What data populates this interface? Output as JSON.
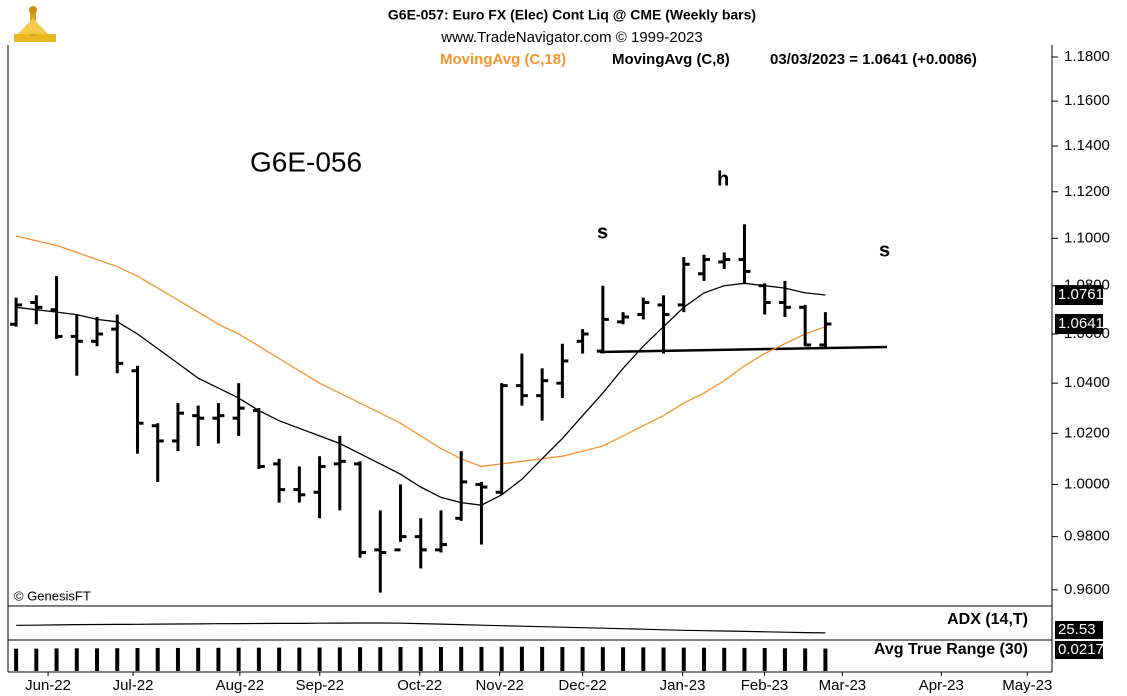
{
  "chart_data": {
    "type": "ohlc",
    "title": "G6E-057:  Euro FX (Elec) Cont Liq @ CME  (Weekly bars)",
    "subtitle": "www.TradeNavigator.com © 1999-2023",
    "last_bar_label": "03/03/2023 = 1.0641 (+0.0086)",
    "copyright": "© GenesisFT",
    "annotations": [
      "G6E-056",
      "s",
      "h",
      "s"
    ],
    "log_scale": true,
    "bar_color": "#000000",
    "categories": [
      null,
      null,
      null,
      null,
      null,
      null,
      null,
      null,
      null,
      null,
      null,
      null,
      null,
      null,
      null,
      null,
      null,
      null,
      null,
      null,
      null,
      null,
      null,
      null,
      null,
      null,
      null,
      null,
      null,
      null,
      null,
      null,
      null,
      null,
      null,
      null,
      null,
      null,
      null,
      null,
      null
    ],
    "ohlc": {
      "open": [
        1.064,
        1.073,
        1.07,
        1.059,
        1.057,
        1.062,
        1.045,
        1.023,
        1.017,
        1.027,
        1.026,
        1.026,
        1.029,
        1.008,
        0.998,
        0.997,
        1.008,
        1.008,
        0.975,
        0.975,
        0.98,
        0.975,
        0.987,
        1.0,
        0.997,
        1.039,
        1.035,
        1.04,
        1.057,
        1.053,
        1.065,
        1.068,
        1.072,
        1.072,
        1.085,
        1.09,
        1.091,
        1.08,
        1.073,
        1.071,
        1.0555
      ],
      "high": [
        1.075,
        1.076,
        1.084,
        1.068,
        1.067,
        1.068,
        1.047,
        1.024,
        1.032,
        1.031,
        1.032,
        1.04,
        1.03,
        1.01,
        1.007,
        1.011,
        1.019,
        1.009,
        0.99,
        1.0,
        0.987,
        0.99,
        1.013,
        1.001,
        1.04,
        1.052,
        1.046,
        1.056,
        1.062,
        1.08,
        1.069,
        1.075,
        1.076,
        1.092,
        1.093,
        1.094,
        1.106,
        1.081,
        1.082,
        1.072,
        1.069
      ],
      "low": [
        1.063,
        1.064,
        1.058,
        1.043,
        1.055,
        1.044,
        1.012,
        1.001,
        1.013,
        1.015,
        1.016,
        1.019,
        1.006,
        0.993,
        0.993,
        0.987,
        0.99,
        0.972,
        0.959,
        0.978,
        0.968,
        0.974,
        0.986,
        0.977,
        0.996,
        1.031,
        1.025,
        1.034,
        1.052,
        1.052,
        1.064,
        1.066,
        1.052,
        1.069,
        1.082,
        1.087,
        1.081,
        1.068,
        1.067,
        1.055,
        1.054
      ],
      "close": [
        1.072,
        1.071,
        1.059,
        1.057,
        1.06,
        1.048,
        1.024,
        1.017,
        1.028,
        1.026,
        1.027,
        1.03,
        1.007,
        0.998,
        0.996,
        1.007,
        1.009,
        0.974,
        0.974,
        0.98,
        0.975,
        0.977,
        1.001,
        0.999,
        1.039,
        1.035,
        1.041,
        1.049,
        1.06,
        1.066,
        1.067,
        1.073,
        1.068,
        1.089,
        1.091,
        1.091,
        1.086,
        1.073,
        1.071,
        1.0555,
        1.0641
      ]
    },
    "series": [
      {
        "name": "MovingAvg (C,18)",
        "color": "#f7922f",
        "values": [
          1.101,
          1.099,
          1.097,
          1.094,
          1.091,
          1.088,
          1.084,
          1.079,
          1.074,
          1.069,
          1.064,
          1.06,
          1.055,
          1.05,
          1.045,
          1.04,
          1.036,
          1.032,
          1.028,
          1.024,
          1.019,
          1.014,
          1.01,
          1.007,
          1.008,
          1.009,
          1.01,
          1.011,
          1.013,
          1.015,
          1.019,
          1.023,
          1.027,
          1.032,
          1.036,
          1.041,
          1.047,
          1.052,
          1.056,
          1.06,
          1.063
        ]
      },
      {
        "name": "MovingAvg (C,8)",
        "color": "#000000",
        "values": [
          1.071,
          1.07,
          1.069,
          1.068,
          1.066,
          1.065,
          1.06,
          1.054,
          1.048,
          1.042,
          1.038,
          1.034,
          1.029,
          1.025,
          1.022,
          1.019,
          1.016,
          1.012,
          1.008,
          1.004,
          0.999,
          0.995,
          0.993,
          0.992,
          0.996,
          1.002,
          1.01,
          1.018,
          1.027,
          1.036,
          1.046,
          1.055,
          1.063,
          1.071,
          1.077,
          1.08,
          1.081,
          1.08,
          1.079,
          1.077,
          1.0761
        ]
      }
    ],
    "xlim": [
      -0.4,
      51.2
    ],
    "xticks": [
      {
        "value": 1.58,
        "label": "Jun-22"
      },
      {
        "value": 5.78,
        "label": "Jul-22"
      },
      {
        "value": 11.06,
        "label": "Aug-22"
      },
      {
        "value": 15.01,
        "label": "Sep-22"
      },
      {
        "value": 19.95,
        "label": "Oct-22"
      },
      {
        "value": 23.9,
        "label": "Nov-22"
      },
      {
        "value": 28.0,
        "label": "Dec-22"
      },
      {
        "value": 32.94,
        "label": "Jan-23"
      },
      {
        "value": 36.99,
        "label": "Feb-23"
      },
      {
        "value": 40.84,
        "label": "Mar-23"
      },
      {
        "value": 45.73,
        "label": "Apr-23"
      },
      {
        "value": 49.98,
        "label": "May-23"
      }
    ],
    "ylim": [
      0.9544,
      1.1855
    ],
    "yticks": [
      {
        "value": 1.18,
        "label": "1.1800"
      },
      {
        "value": 1.16,
        "label": "1.1600"
      },
      {
        "value": 1.14,
        "label": "1.1400"
      },
      {
        "value": 1.12,
        "label": "1.1200"
      },
      {
        "value": 1.1,
        "label": "1.1000"
      },
      {
        "value": 1.08,
        "label": "1.0800"
      },
      {
        "value": 1.06,
        "label": "1.0600"
      },
      {
        "value": 1.04,
        "label": "1.0400"
      },
      {
        "value": 1.02,
        "label": "1.0200"
      },
      {
        "value": 1.0,
        "label": "1.0000"
      },
      {
        "value": 0.98,
        "label": "0.9800"
      },
      {
        "value": 0.96,
        "label": "0.9600"
      }
    ],
    "grid": false,
    "indicators": [
      {
        "name": "ADX (14,T)",
        "type": "line",
        "color": "#000000",
        "ylim": [
          20,
          45
        ],
        "values": [
          31.5,
          31.6,
          31.8,
          32.0,
          32.1,
          32.2,
          32.3,
          32.4,
          32.5,
          32.6,
          32.7,
          32.8,
          32.9,
          33.0,
          33.0,
          33.1,
          33.2,
          33.3,
          33.3,
          33.1,
          32.8,
          32.4,
          32.0,
          31.6,
          31.2,
          30.8,
          30.4,
          30.0,
          29.6,
          29.2,
          28.8,
          28.4,
          28.0,
          27.6,
          27.3,
          27.0,
          26.7,
          26.4,
          26.1,
          25.8,
          25.53
        ]
      },
      {
        "name": "Avg True Range (30)",
        "type": "bar",
        "color": "#000000",
        "ylim": [
          0,
          0.028
        ],
        "values": [
          0.0215,
          0.0216,
          0.0218,
          0.0219,
          0.0219,
          0.022,
          0.0222,
          0.0223,
          0.0223,
          0.0224,
          0.0224,
          0.0225,
          0.0225,
          0.0226,
          0.0226,
          0.0227,
          0.0228,
          0.0229,
          0.023,
          0.0231,
          0.0231,
          0.0232,
          0.0233,
          0.0233,
          0.0234,
          0.0234,
          0.0233,
          0.0232,
          0.0231,
          0.023,
          0.0229,
          0.0228,
          0.0227,
          0.0226,
          0.0225,
          0.0224,
          0.0223,
          0.0222,
          0.022,
          0.0218,
          0.0217
        ]
      }
    ]
  }
}
